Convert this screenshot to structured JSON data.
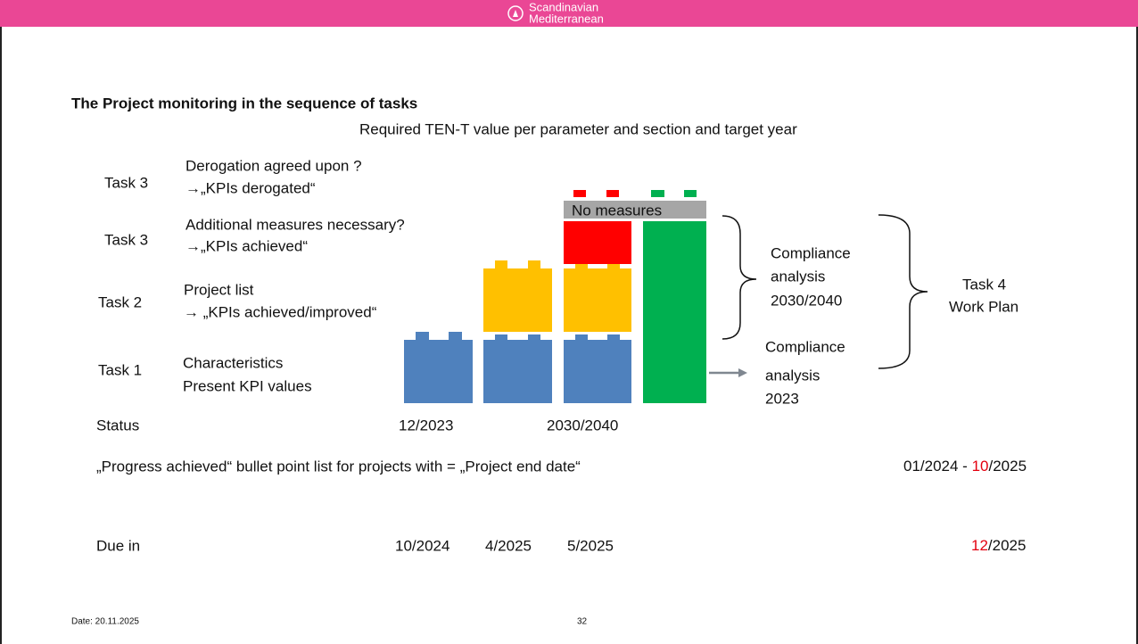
{
  "header": {
    "logo_line1": "Scandinavian",
    "logo_line2": "Mediterranean"
  },
  "title": "The Project monitoring in the sequence of tasks",
  "subtitle": "Required TEN-T value per parameter and section and target year",
  "tasks": [
    {
      "label": "Task 3",
      "lines": [
        "Derogation agreed upon ?",
        "→„KPIs derogated“"
      ]
    },
    {
      "label": "Task 3",
      "lines": [
        "Additional measures necessary?",
        "→„KPIs achieved“"
      ]
    },
    {
      "label": "Task 2",
      "lines": [
        "Project list",
        "→ „KPIs achieved/improved“"
      ]
    },
    {
      "label": "Task 1",
      "lines": [
        "Characteristics",
        "Present KPI values"
      ]
    }
  ],
  "status": {
    "label": "Status",
    "dates": [
      "12/2023",
      "2030/2040"
    ]
  },
  "blocks": {
    "no_measures": "No measures"
  },
  "compliance": [
    {
      "lines": [
        "Compliance",
        "analysis",
        "2030/2040"
      ]
    },
    {
      "lines": [
        "Compliance",
        "analysis",
        "2023"
      ]
    }
  ],
  "work_plan": [
    "Task 4",
    "Work Plan"
  ],
  "progress": {
    "text": "„Progress achieved“ bullet point list for projects with = „Project end date“",
    "period": [
      "01/2024 - ",
      "10",
      "/2025"
    ]
  },
  "due": {
    "label": "Due in",
    "dates": [
      "10/2024",
      "4/2025",
      "5/2025"
    ],
    "final": [
      "12",
      "/2025"
    ]
  },
  "footer": {
    "date": "Date: 20.11.2025",
    "page": "32"
  }
}
